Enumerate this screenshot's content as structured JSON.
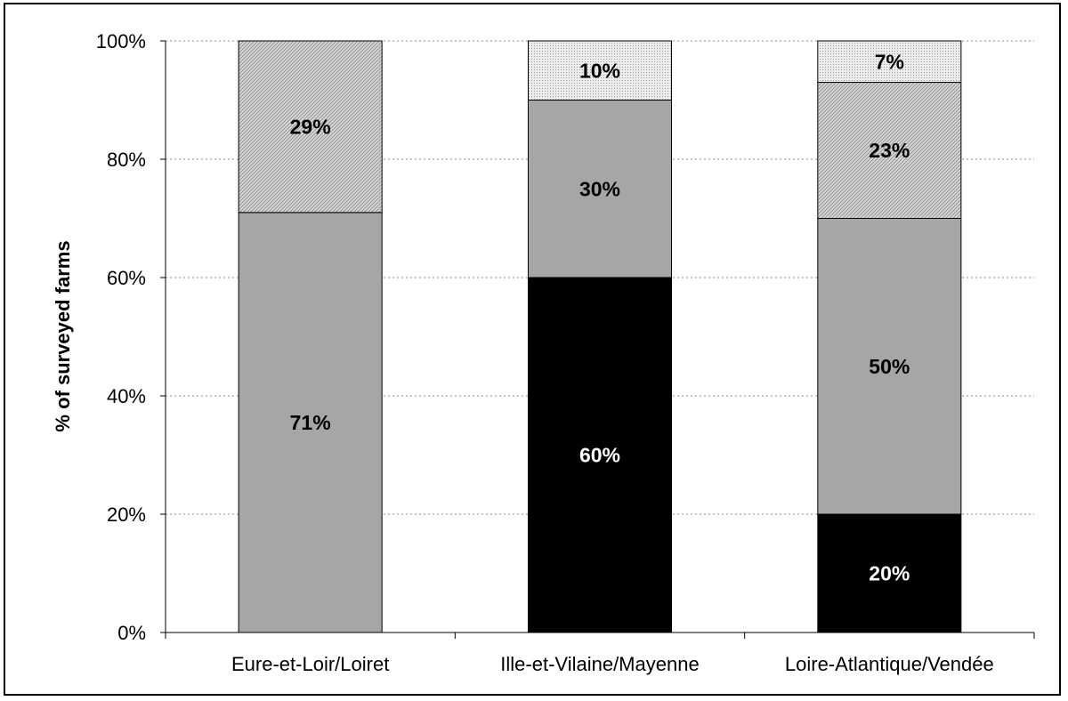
{
  "chart_data": {
    "type": "bar",
    "stacked": true,
    "percent_stacked": true,
    "categories": [
      "Eure-et-Loir/Loiret",
      "Ille-et-Vilaine/Mayenne",
      "Loire-Atlantique/Vendée"
    ],
    "series": [
      {
        "values": [
          0,
          60,
          20
        ],
        "labels": [
          "",
          "60%",
          "20%"
        ],
        "color": "#000000",
        "pattern": "solid"
      },
      {
        "values": [
          71,
          30,
          50
        ],
        "labels": [
          "71%",
          "30%",
          "50%"
        ],
        "color": "#a6a6a6",
        "pattern": "solid"
      },
      {
        "values": [
          29,
          0,
          23
        ],
        "labels": [
          "29%",
          "",
          "23%"
        ],
        "color": "#c8c8c8",
        "pattern": "diagonal-hatch"
      },
      {
        "values": [
          0,
          10,
          7
        ],
        "labels": [
          "",
          "10%",
          "7%"
        ],
        "color": "#d8d8d8",
        "pattern": "dots"
      }
    ],
    "ylabel": "% of surveyed farms",
    "xlabel": "",
    "ylim": [
      0,
      100
    ],
    "yticks": [
      "0%",
      "20%",
      "40%",
      "60%",
      "80%",
      "100%"
    ],
    "grid": true,
    "grid_style": "dotted",
    "legend": "none"
  }
}
